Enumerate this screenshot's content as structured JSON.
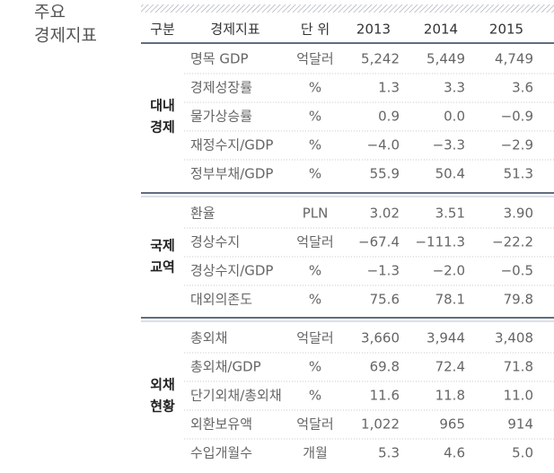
{
  "title": [
    "주요",
    "경제지표"
  ],
  "table": {
    "header": [
      "구분",
      "경제지표",
      "단 위",
      "2013",
      "2014",
      "2015"
    ],
    "groups": [
      {
        "label": [
          "대내",
          "경제"
        ],
        "rows": [
          [
            "명목 GDP",
            "억달러",
            "5,242",
            "5,449",
            "4,749"
          ],
          [
            "경제성장률",
            "%",
            "1.3",
            "3.3",
            "3.6"
          ],
          [
            "물가상승률",
            "%",
            "0.9",
            "0.0",
            "−0.9"
          ],
          [
            "재정수지/GDP",
            "%",
            "−4.0",
            "−3.3",
            "−2.9"
          ],
          [
            "정부부채/GDP",
            "%",
            "55.9",
            "50.4",
            "51.3"
          ]
        ]
      },
      {
        "label": [
          "국제",
          "교역"
        ],
        "rows": [
          [
            "환율",
            "PLN",
            "3.02",
            "3.51",
            "3.90"
          ],
          [
            "경상수지",
            "억달러",
            "−67.4",
            "−111.3",
            "−22.2"
          ],
          [
            "경상수지/GDP",
            "%",
            "−1.3",
            "−2.0",
            "−0.5"
          ],
          [
            "대외의존도",
            "%",
            "75.6",
            "78.1",
            "79.8"
          ]
        ]
      },
      {
        "label": [
          "외채",
          "현황"
        ],
        "rows": [
          [
            "총외채",
            "억달러",
            "3,660",
            "3,944",
            "3,408"
          ],
          [
            "총외채/GDP",
            "%",
            "69.8",
            "72.4",
            "71.8"
          ],
          [
            "단기외채/총외채",
            "%",
            "11.6",
            "11.8",
            "11.0"
          ],
          [
            "외환보유액",
            "억달러",
            "1,022",
            "965",
            "914"
          ],
          [
            "수입개월수",
            "개월",
            "5.3",
            "4.6",
            "5.0"
          ]
        ]
      }
    ]
  }
}
